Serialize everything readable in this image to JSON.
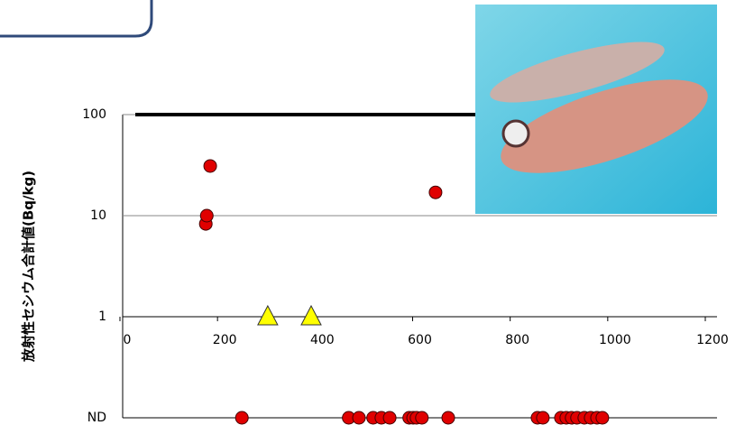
{
  "chart_data": {
    "type": "scatter",
    "y_label": "放射性セシウム合計値(Bq/kg)",
    "nd_label": "ND",
    "xlim": [
      0,
      1200
    ],
    "xticks": [
      0,
      200,
      400,
      600,
      800,
      1000,
      1200
    ],
    "ylim": [
      0.1,
      100
    ],
    "yticks": [
      1,
      10,
      100
    ],
    "log_y": true,
    "grid": true,
    "reference_line": 100,
    "series": [
      {
        "color": "#e00000",
        "marker": "circle",
        "x": [
          176,
          178,
          185,
          647
        ],
        "values": [
          8.3,
          10,
          31,
          17
        ]
      },
      {
        "color": "#ffff00",
        "marker": "triangle",
        "x": [
          303,
          392
        ],
        "values": [
          1,
          1
        ]
      },
      {
        "color": "#e00000",
        "marker": "circle",
        "nd": true,
        "x": [
          250,
          469,
          490,
          519,
          536,
          553,
          593,
          601,
          608,
          619,
          673,
          856,
          867,
          904,
          915,
          926,
          937,
          952,
          965,
          978,
          989
        ]
      }
    ]
  }
}
